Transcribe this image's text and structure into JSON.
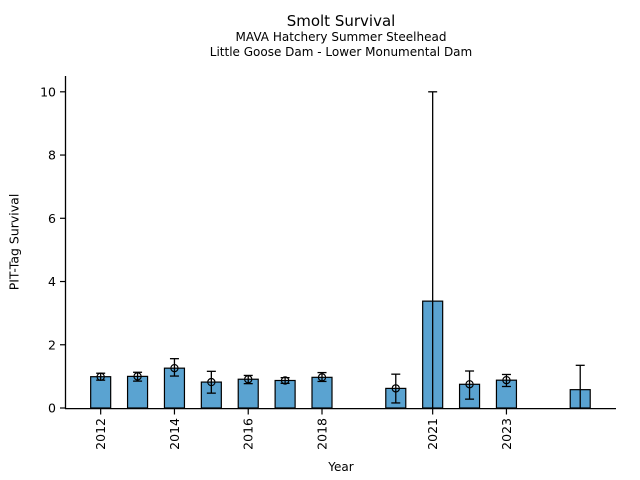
{
  "chart_data": {
    "type": "bar",
    "title": "Smolt Survival",
    "subtitle1": "MAVA Hatchery Summer Steelhead",
    "subtitle2": "Little Goose Dam - Lower Monumental Dam",
    "xlabel": "Year",
    "ylabel": "PIT-Tag Survival",
    "xlim": [
      2011.06,
      2025.97
    ],
    "ylim": [
      0,
      10.5
    ],
    "yticks": [
      0,
      2,
      4,
      6,
      8,
      10
    ],
    "xtick_years": [
      2012,
      2014,
      2016,
      2018,
      2021,
      2023
    ],
    "grid": false,
    "legend": null,
    "bar_color": "#5AA3D1",
    "bar_edge_color": "#000000",
    "errorbar_color": "#000000",
    "bars": [
      {
        "year": 2012,
        "value": 0.99,
        "ci_low": 0.88,
        "ci_high": 1.1,
        "marker": true,
        "cap_low": true
      },
      {
        "year": 2013,
        "value": 1.0,
        "ci_low": 0.85,
        "ci_high": 1.13,
        "marker": true,
        "cap_low": true
      },
      {
        "year": 2014,
        "value": 1.26,
        "ci_low": 1.01,
        "ci_high": 1.56,
        "marker": true,
        "cap_low": true
      },
      {
        "year": 2015,
        "value": 0.82,
        "ci_low": 0.47,
        "ci_high": 1.16,
        "marker": true,
        "cap_low": true
      },
      {
        "year": 2016,
        "value": 0.91,
        "ci_low": 0.77,
        "ci_high": 1.03,
        "marker": true,
        "cap_low": true
      },
      {
        "year": 2017,
        "value": 0.87,
        "ci_low": 0.78,
        "ci_high": 0.96,
        "marker": true,
        "cap_low": true
      },
      {
        "year": 2018,
        "value": 0.97,
        "ci_low": 0.84,
        "ci_high": 1.12,
        "marker": true,
        "cap_low": true
      },
      {
        "year": 2020,
        "value": 0.62,
        "ci_low": 0.16,
        "ci_high": 1.07,
        "marker": true,
        "cap_low": true
      },
      {
        "year": 2021,
        "value": 3.38,
        "ci_low": 0.0,
        "ci_high": 10.0,
        "marker": false,
        "cap_low": false
      },
      {
        "year": 2022,
        "value": 0.75,
        "ci_low": 0.28,
        "ci_high": 1.17,
        "marker": true,
        "cap_low": true
      },
      {
        "year": 2023,
        "value": 0.88,
        "ci_low": 0.68,
        "ci_high": 1.06,
        "marker": true,
        "cap_low": true
      },
      {
        "year": 2025,
        "value": 0.58,
        "ci_low": 0.0,
        "ci_high": 1.35,
        "marker": false,
        "cap_low": false
      }
    ]
  }
}
